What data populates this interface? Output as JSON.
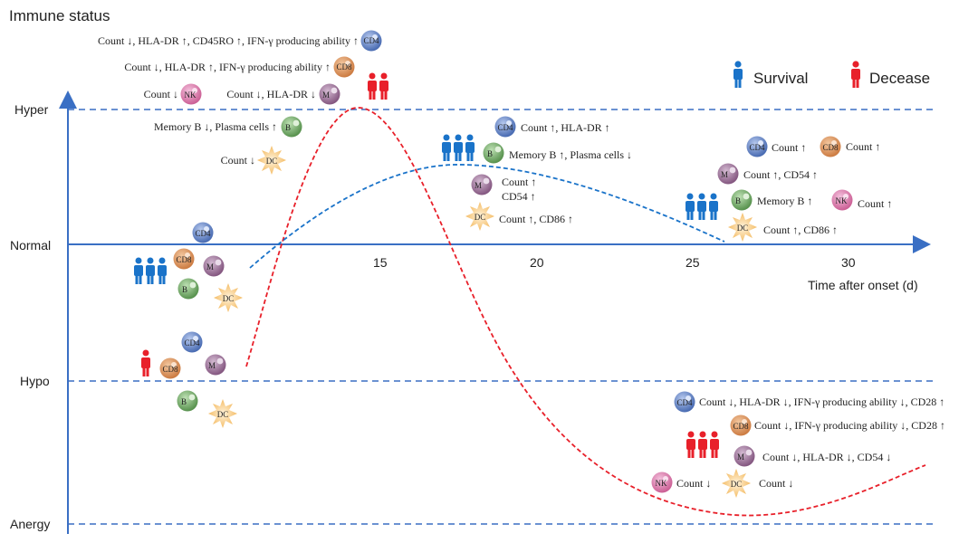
{
  "title": "Immune status",
  "axis": {
    "x_label": "Time after onset (d)",
    "x_ticks": [
      "15",
      "20",
      "25",
      "30"
    ],
    "y_levels": [
      "Hyper",
      "Normal",
      "Hypo",
      "Anergy"
    ]
  },
  "legend": {
    "survival": "Survival",
    "decease": "Decease",
    "survival_color": "#1a73c9",
    "decease_color": "#e8202a"
  },
  "cells": {
    "cd4": "CD4",
    "cd8": "CD8",
    "nk": "NK",
    "m": "M",
    "b": "B",
    "dc": "DC"
  },
  "annotations": {
    "early_decease_cd4": "Count ↓, HLA-DR ↑, CD45RO ↑, IFN-γ producing ability ↑",
    "early_decease_cd8": "Count ↓, HLA-DR ↑, IFN-γ producing ability ↑",
    "early_decease_nk": "Count ↓",
    "early_decease_m": "Count ↓, HLA-DR ↓",
    "early_decease_b": "Memory B ↓, Plasma cells ↑",
    "early_decease_dc": "Count ↓",
    "mid_survival_cd4": "Count ↑, HLA-DR ↑",
    "mid_survival_b": "Memory B ↑, Plasma cells ↓",
    "mid_survival_m_1": "Count ↑",
    "mid_survival_m_2": "CD54 ↑",
    "mid_survival_dc": "Count ↑, CD86 ↑",
    "late_survival_cd4": "Count ↑",
    "late_survival_cd8": "Count ↑",
    "late_survival_m": "Count ↑, CD54 ↑",
    "late_survival_b": "Memory B ↑",
    "late_survival_nk": "Count ↑",
    "late_survival_dc": "Count ↑, CD86 ↑",
    "late_decease_cd4": "Count ↓, HLA-DR ↓, IFN-γ producing ability ↓, CD28 ↑",
    "late_decease_cd8": "Count ↓, IFN-γ producing ability ↓, CD28 ↑",
    "late_decease_m": "Count ↓, HLA-DR ↓, CD54 ↓",
    "late_decease_nk": "Count ↓",
    "late_decease_dc": "Count ↓"
  },
  "colors": {
    "axis": "#3a6fc4",
    "cd4": "#4a6fb5",
    "cd8": "#d98a4e",
    "nk": "#d46aa3",
    "m": "#8a5a86",
    "b": "#5e9a52",
    "dc": "#f6c470"
  }
}
